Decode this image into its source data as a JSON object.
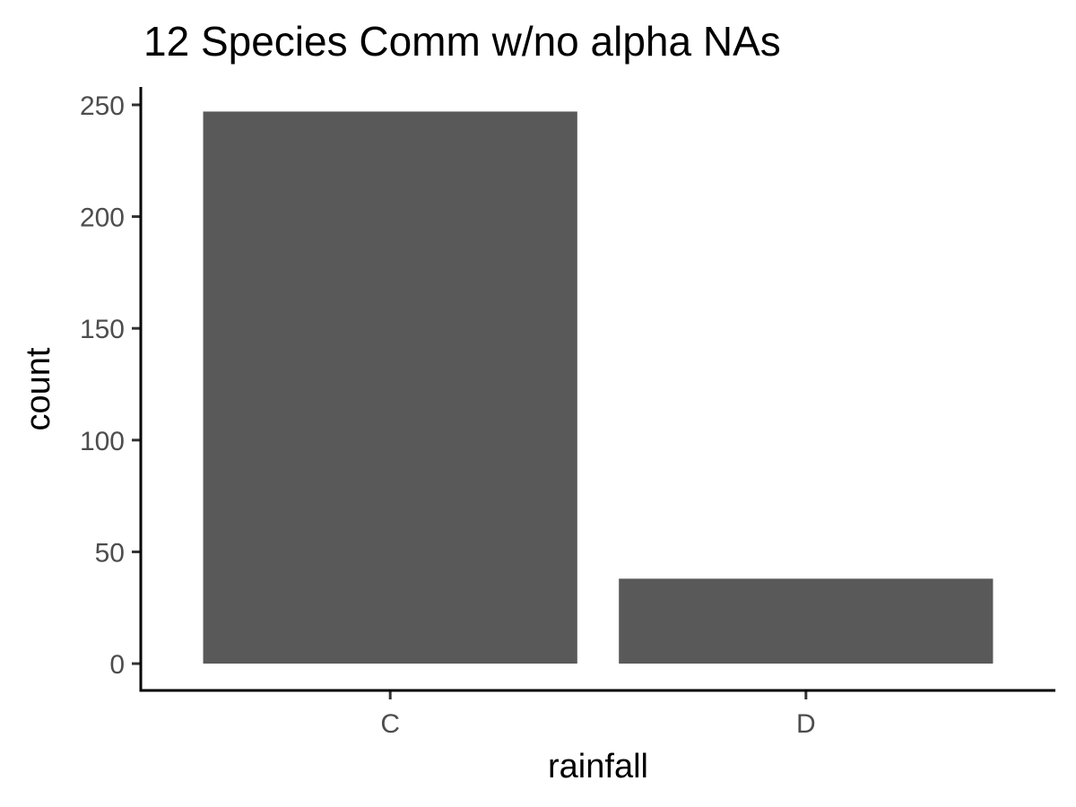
{
  "chart_data": {
    "type": "bar",
    "title": "12 Species Comm w/no alpha NAs",
    "xlabel": "rainfall",
    "ylabel": "count",
    "categories": [
      "C",
      "D"
    ],
    "values": [
      247,
      38
    ],
    "ylim": [
      -12,
      258
    ],
    "yticks": [
      0,
      50,
      100,
      150,
      200,
      250
    ],
    "grid": false,
    "legend": "none",
    "bar_color": "#595959",
    "axis_color": "#000000",
    "tick_label_color": "#4d4d4d"
  }
}
